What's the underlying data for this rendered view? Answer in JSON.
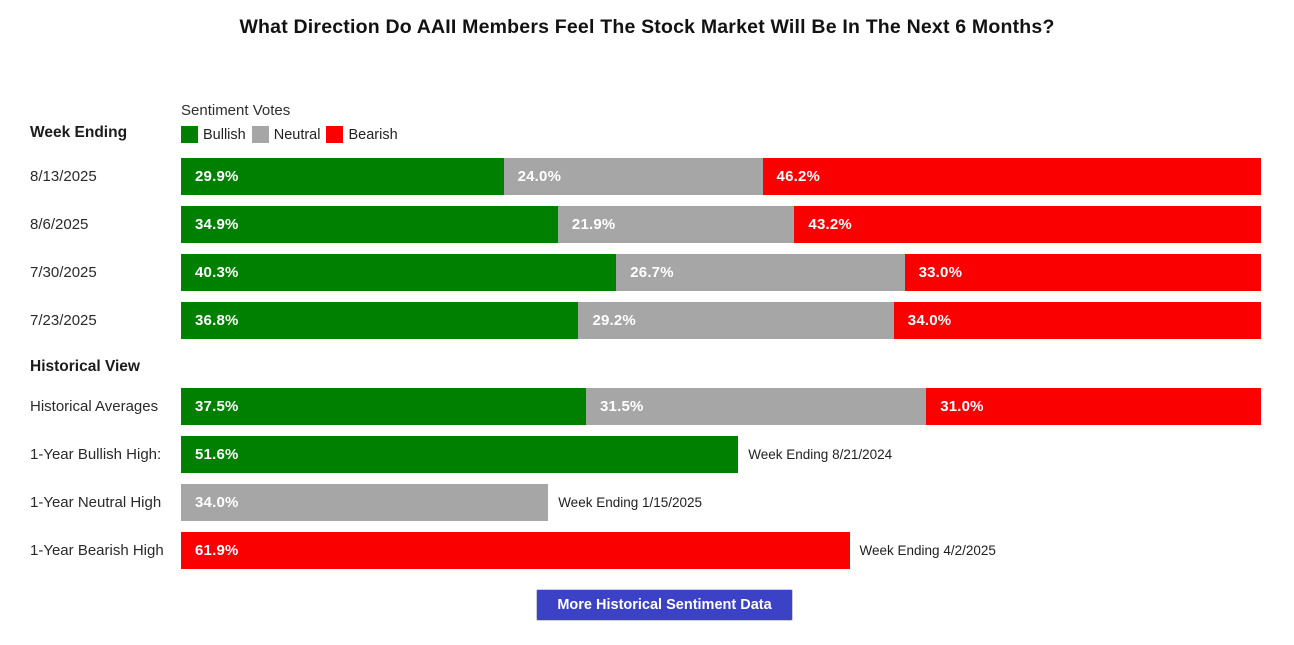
{
  "title": "What Direction Do AAII Members Feel The Stock Market Will Be In The Next 6 Months?",
  "legend": {
    "title": "Sentiment Votes",
    "items": [
      {
        "label": "Bullish",
        "color": "#008000"
      },
      {
        "label": "Neutral",
        "color": "#a6a6a6"
      },
      {
        "label": "Bearish",
        "color": "#fa0000"
      }
    ]
  },
  "week_ending_heading": "Week Ending",
  "historical_heading": "Historical View",
  "weekly": {
    "rows": [
      {
        "date": "8/13/2025",
        "segments": [
          {
            "pct": 29.9,
            "label": "29.9%",
            "color": "#008000"
          },
          {
            "pct": 24.0,
            "label": "24.0%",
            "color": "#a6a6a6"
          },
          {
            "pct": 46.2,
            "label": "46.2%",
            "color": "#fa0000"
          }
        ]
      },
      {
        "date": "8/6/2025",
        "segments": [
          {
            "pct": 34.9,
            "label": "34.9%",
            "color": "#008000"
          },
          {
            "pct": 21.9,
            "label": "21.9%",
            "color": "#a6a6a6"
          },
          {
            "pct": 43.2,
            "label": "43.2%",
            "color": "#fa0000"
          }
        ]
      },
      {
        "date": "7/30/2025",
        "segments": [
          {
            "pct": 40.3,
            "label": "40.3%",
            "color": "#008000"
          },
          {
            "pct": 26.7,
            "label": "26.7%",
            "color": "#a6a6a6"
          },
          {
            "pct": 33.0,
            "label": "33.0%",
            "color": "#fa0000"
          }
        ]
      },
      {
        "date": "7/23/2025",
        "segments": [
          {
            "pct": 36.8,
            "label": "36.8%",
            "color": "#008000"
          },
          {
            "pct": 29.2,
            "label": "29.2%",
            "color": "#a6a6a6"
          },
          {
            "pct": 34.0,
            "label": "34.0%",
            "color": "#fa0000"
          }
        ]
      }
    ]
  },
  "historical": {
    "rows": [
      {
        "label": "Historical Averages",
        "segments": [
          {
            "pct": 37.5,
            "label": "37.5%",
            "color": "#008000"
          },
          {
            "pct": 31.5,
            "label": "31.5%",
            "color": "#a6a6a6"
          },
          {
            "pct": 31.0,
            "label": "31.0%",
            "color": "#fa0000"
          }
        ]
      },
      {
        "label": "1-Year Bullish High:",
        "segments": [
          {
            "pct": 51.6,
            "label": "51.6%",
            "color": "#008000"
          }
        ],
        "annotation": "Week Ending 8/21/2024"
      },
      {
        "label": "1-Year Neutral High",
        "segments": [
          {
            "pct": 34.0,
            "label": "34.0%",
            "color": "#a6a6a6"
          }
        ],
        "annotation": "Week Ending 1/15/2025"
      },
      {
        "label": "1-Year Bearish High",
        "segments": [
          {
            "pct": 61.9,
            "label": "61.9%",
            "color": "#fa0000"
          }
        ],
        "annotation": "Week Ending 4/2/2025"
      }
    ]
  },
  "button": {
    "label": "More Historical Sentiment Data",
    "color": "#3b42c5"
  },
  "chart_data": {
    "type": "bar",
    "orientation": "horizontal",
    "stacked": true,
    "title": "What Direction Do AAII Members Feel The Stock Market Will Be In The Next 6 Months?",
    "legend_title": "Sentiment Votes",
    "legend_position": "top-left",
    "unit": "%",
    "xlim": [
      0,
      100
    ],
    "categories": [
      "8/13/2025",
      "8/6/2025",
      "7/30/2025",
      "7/23/2025",
      "Historical Averages",
      "1-Year Bullish High",
      "1-Year Neutral High",
      "1-Year Bearish High"
    ],
    "series": [
      {
        "name": "Bullish",
        "color": "#008000",
        "values": [
          29.9,
          34.9,
          40.3,
          36.8,
          37.5,
          51.6,
          null,
          null
        ]
      },
      {
        "name": "Neutral",
        "color": "#a6a6a6",
        "values": [
          24.0,
          21.9,
          26.7,
          29.2,
          31.5,
          null,
          34.0,
          null
        ]
      },
      {
        "name": "Bearish",
        "color": "#fa0000",
        "values": [
          46.2,
          43.2,
          33.0,
          34.0,
          31.0,
          null,
          null,
          61.9
        ]
      }
    ],
    "annotations": [
      {
        "category": "1-Year Bullish High",
        "text": "Week Ending 8/21/2024"
      },
      {
        "category": "1-Year Neutral High",
        "text": "Week Ending 1/15/2025"
      },
      {
        "category": "1-Year Bearish High",
        "text": "Week Ending 4/2/2025"
      }
    ]
  }
}
